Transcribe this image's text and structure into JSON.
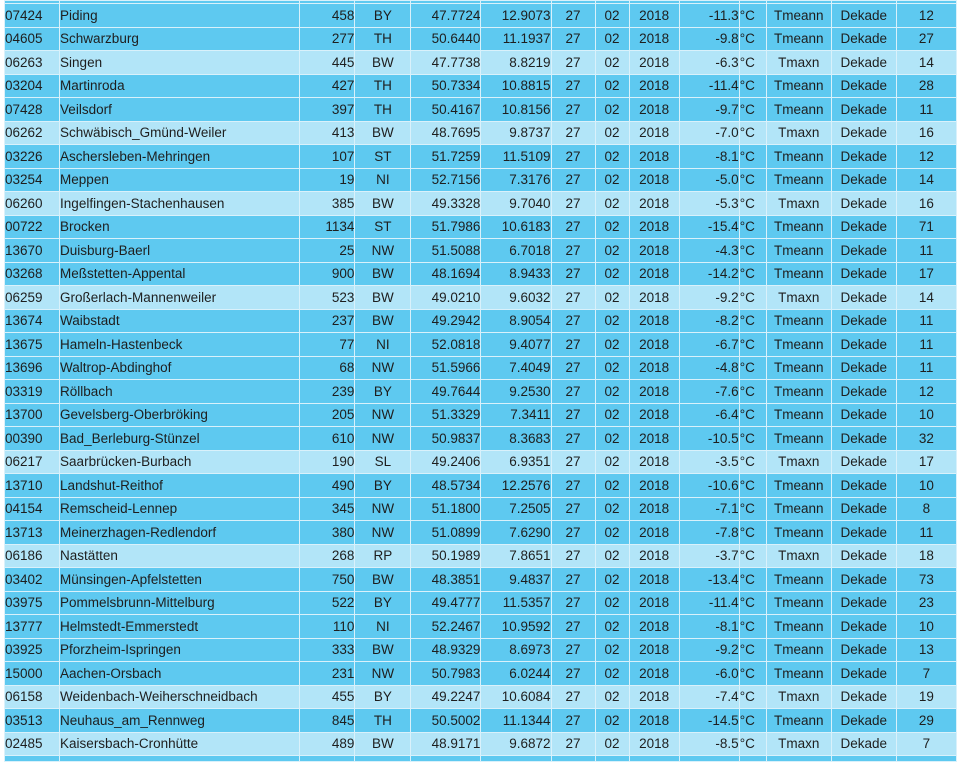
{
  "colors": {
    "row_dark": "#5ec9f0",
    "row_light": "#b2e5f8",
    "grid": "#d9f1fb",
    "text": "#1e1e1e",
    "page": "#ffffff"
  },
  "table": {
    "rows": [
      {
        "station_id": "07424",
        "name": "Piding",
        "elevation": "458",
        "state": "BY",
        "latitude": "47.7724",
        "longitude": "12.9073",
        "day": "27",
        "month": "02",
        "year": "2018",
        "temperature": "-11.3",
        "unit": "°C",
        "measure_type": "Tmeann",
        "period": "Dekade",
        "value": "12"
      },
      {
        "station_id": "04605",
        "name": "Schwarzburg",
        "elevation": "277",
        "state": "TH",
        "latitude": "50.6440",
        "longitude": "11.1937",
        "day": "27",
        "month": "02",
        "year": "2018",
        "temperature": "-9.8",
        "unit": "°C",
        "measure_type": "Tmeann",
        "period": "Dekade",
        "value": "27"
      },
      {
        "station_id": "06263",
        "name": "Singen",
        "elevation": "445",
        "state": "BW",
        "latitude": "47.7738",
        "longitude": "8.8219",
        "day": "27",
        "month": "02",
        "year": "2018",
        "temperature": "-6.3",
        "unit": "°C",
        "measure_type": "Tmaxn",
        "period": "Dekade",
        "value": "14"
      },
      {
        "station_id": "03204",
        "name": "Martinroda",
        "elevation": "427",
        "state": "TH",
        "latitude": "50.7334",
        "longitude": "10.8815",
        "day": "27",
        "month": "02",
        "year": "2018",
        "temperature": "-11.4",
        "unit": "°C",
        "measure_type": "Tmeann",
        "period": "Dekade",
        "value": "28"
      },
      {
        "station_id": "07428",
        "name": "Veilsdorf",
        "elevation": "397",
        "state": "TH",
        "latitude": "50.4167",
        "longitude": "10.8156",
        "day": "27",
        "month": "02",
        "year": "2018",
        "temperature": "-9.7",
        "unit": "°C",
        "measure_type": "Tmeann",
        "period": "Dekade",
        "value": "11"
      },
      {
        "station_id": "06262",
        "name": "Schwäbisch_Gmünd-Weiler",
        "elevation": "413",
        "state": "BW",
        "latitude": "48.7695",
        "longitude": "9.8737",
        "day": "27",
        "month": "02",
        "year": "2018",
        "temperature": "-7.0",
        "unit": "°C",
        "measure_type": "Tmaxn",
        "period": "Dekade",
        "value": "16"
      },
      {
        "station_id": "03226",
        "name": "Aschersleben-Mehringen",
        "elevation": "107",
        "state": "ST",
        "latitude": "51.7259",
        "longitude": "11.5109",
        "day": "27",
        "month": "02",
        "year": "2018",
        "temperature": "-8.1",
        "unit": "°C",
        "measure_type": "Tmeann",
        "period": "Dekade",
        "value": "12"
      },
      {
        "station_id": "03254",
        "name": "Meppen",
        "elevation": "19",
        "state": "NI",
        "latitude": "52.7156",
        "longitude": "7.3176",
        "day": "27",
        "month": "02",
        "year": "2018",
        "temperature": "-5.0",
        "unit": "°C",
        "measure_type": "Tmeann",
        "period": "Dekade",
        "value": "14"
      },
      {
        "station_id": "06260",
        "name": "Ingelfingen-Stachenhausen",
        "elevation": "385",
        "state": "BW",
        "latitude": "49.3328",
        "longitude": "9.7040",
        "day": "27",
        "month": "02",
        "year": "2018",
        "temperature": "-5.3",
        "unit": "°C",
        "measure_type": "Tmaxn",
        "period": "Dekade",
        "value": "16"
      },
      {
        "station_id": "00722",
        "name": "Brocken",
        "elevation": "1134",
        "state": "ST",
        "latitude": "51.7986",
        "longitude": "10.6183",
        "day": "27",
        "month": "02",
        "year": "2018",
        "temperature": "-15.4",
        "unit": "°C",
        "measure_type": "Tmeann",
        "period": "Dekade",
        "value": "71"
      },
      {
        "station_id": "13670",
        "name": "Duisburg-Baerl",
        "elevation": "25",
        "state": "NW",
        "latitude": "51.5088",
        "longitude": "6.7018",
        "day": "27",
        "month": "02",
        "year": "2018",
        "temperature": "-4.3",
        "unit": "°C",
        "measure_type": "Tmeann",
        "period": "Dekade",
        "value": "11"
      },
      {
        "station_id": "03268",
        "name": "Meßstetten-Appental",
        "elevation": "900",
        "state": "BW",
        "latitude": "48.1694",
        "longitude": "8.9433",
        "day": "27",
        "month": "02",
        "year": "2018",
        "temperature": "-14.2",
        "unit": "°C",
        "measure_type": "Tmeann",
        "period": "Dekade",
        "value": "17"
      },
      {
        "station_id": "06259",
        "name": "Großerlach-Mannenweiler",
        "elevation": "523",
        "state": "BW",
        "latitude": "49.0210",
        "longitude": "9.6032",
        "day": "27",
        "month": "02",
        "year": "2018",
        "temperature": "-9.2",
        "unit": "°C",
        "measure_type": "Tmaxn",
        "period": "Dekade",
        "value": "14"
      },
      {
        "station_id": "13674",
        "name": "Waibstadt",
        "elevation": "237",
        "state": "BW",
        "latitude": "49.2942",
        "longitude": "8.9054",
        "day": "27",
        "month": "02",
        "year": "2018",
        "temperature": "-8.2",
        "unit": "°C",
        "measure_type": "Tmeann",
        "period": "Dekade",
        "value": "11"
      },
      {
        "station_id": "13675",
        "name": "Hameln-Hastenbeck",
        "elevation": "77",
        "state": "NI",
        "latitude": "52.0818",
        "longitude": "9.4077",
        "day": "27",
        "month": "02",
        "year": "2018",
        "temperature": "-6.7",
        "unit": "°C",
        "measure_type": "Tmeann",
        "period": "Dekade",
        "value": "11"
      },
      {
        "station_id": "13696",
        "name": "Waltrop-Abdinghof",
        "elevation": "68",
        "state": "NW",
        "latitude": "51.5966",
        "longitude": "7.4049",
        "day": "27",
        "month": "02",
        "year": "2018",
        "temperature": "-4.8",
        "unit": "°C",
        "measure_type": "Tmeann",
        "period": "Dekade",
        "value": "11"
      },
      {
        "station_id": "03319",
        "name": "Röllbach",
        "elevation": "239",
        "state": "BY",
        "latitude": "49.7644",
        "longitude": "9.2530",
        "day": "27",
        "month": "02",
        "year": "2018",
        "temperature": "-7.6",
        "unit": "°C",
        "measure_type": "Tmeann",
        "period": "Dekade",
        "value": "12"
      },
      {
        "station_id": "13700",
        "name": "Gevelsberg-Oberbröking",
        "elevation": "205",
        "state": "NW",
        "latitude": "51.3329",
        "longitude": "7.3411",
        "day": "27",
        "month": "02",
        "year": "2018",
        "temperature": "-6.4",
        "unit": "°C",
        "measure_type": "Tmeann",
        "period": "Dekade",
        "value": "10"
      },
      {
        "station_id": "00390",
        "name": "Bad_Berleburg-Stünzel",
        "elevation": "610",
        "state": "NW",
        "latitude": "50.9837",
        "longitude": "8.3683",
        "day": "27",
        "month": "02",
        "year": "2018",
        "temperature": "-10.5",
        "unit": "°C",
        "measure_type": "Tmeann",
        "period": "Dekade",
        "value": "32"
      },
      {
        "station_id": "06217",
        "name": "Saarbrücken-Burbach",
        "elevation": "190",
        "state": "SL",
        "latitude": "49.2406",
        "longitude": "6.9351",
        "day": "27",
        "month": "02",
        "year": "2018",
        "temperature": "-3.5",
        "unit": "°C",
        "measure_type": "Tmaxn",
        "period": "Dekade",
        "value": "17"
      },
      {
        "station_id": "13710",
        "name": "Landshut-Reithof",
        "elevation": "490",
        "state": "BY",
        "latitude": "48.5734",
        "longitude": "12.2576",
        "day": "27",
        "month": "02",
        "year": "2018",
        "temperature": "-10.6",
        "unit": "°C",
        "measure_type": "Tmeann",
        "period": "Dekade",
        "value": "10"
      },
      {
        "station_id": "04154",
        "name": "Remscheid-Lennep",
        "elevation": "345",
        "state": "NW",
        "latitude": "51.1800",
        "longitude": "7.2505",
        "day": "27",
        "month": "02",
        "year": "2018",
        "temperature": "-7.1",
        "unit": "°C",
        "measure_type": "Tmeann",
        "period": "Dekade",
        "value": "8"
      },
      {
        "station_id": "13713",
        "name": "Meinerzhagen-Redlendorf",
        "elevation": "380",
        "state": "NW",
        "latitude": "51.0899",
        "longitude": "7.6290",
        "day": "27",
        "month": "02",
        "year": "2018",
        "temperature": "-7.8",
        "unit": "°C",
        "measure_type": "Tmeann",
        "period": "Dekade",
        "value": "11"
      },
      {
        "station_id": "06186",
        "name": "Nastätten",
        "elevation": "268",
        "state": "RP",
        "latitude": "50.1989",
        "longitude": "7.8651",
        "day": "27",
        "month": "02",
        "year": "2018",
        "temperature": "-3.7",
        "unit": "°C",
        "measure_type": "Tmaxn",
        "period": "Dekade",
        "value": "18"
      },
      {
        "station_id": "03402",
        "name": "Münsingen-Apfelstetten",
        "elevation": "750",
        "state": "BW",
        "latitude": "48.3851",
        "longitude": "9.4837",
        "day": "27",
        "month": "02",
        "year": "2018",
        "temperature": "-13.4",
        "unit": "°C",
        "measure_type": "Tmeann",
        "period": "Dekade",
        "value": "73"
      },
      {
        "station_id": "03975",
        "name": "Pommelsbrunn-Mittelburg",
        "elevation": "522",
        "state": "BY",
        "latitude": "49.4777",
        "longitude": "11.5357",
        "day": "27",
        "month": "02",
        "year": "2018",
        "temperature": "-11.4",
        "unit": "°C",
        "measure_type": "Tmeann",
        "period": "Dekade",
        "value": "23"
      },
      {
        "station_id": "13777",
        "name": "Helmstedt-Emmerstedt",
        "elevation": "110",
        "state": "NI",
        "latitude": "52.2467",
        "longitude": "10.9592",
        "day": "27",
        "month": "02",
        "year": "2018",
        "temperature": "-8.1",
        "unit": "°C",
        "measure_type": "Tmeann",
        "period": "Dekade",
        "value": "10"
      },
      {
        "station_id": "03925",
        "name": "Pforzheim-Ispringen",
        "elevation": "333",
        "state": "BW",
        "latitude": "48.9329",
        "longitude": "8.6973",
        "day": "27",
        "month": "02",
        "year": "2018",
        "temperature": "-9.2",
        "unit": "°C",
        "measure_type": "Tmeann",
        "period": "Dekade",
        "value": "13"
      },
      {
        "station_id": "15000",
        "name": "Aachen-Orsbach",
        "elevation": "231",
        "state": "NW",
        "latitude": "50.7983",
        "longitude": "6.0244",
        "day": "27",
        "month": "02",
        "year": "2018",
        "temperature": "-6.0",
        "unit": "°C",
        "measure_type": "Tmeann",
        "period": "Dekade",
        "value": "7"
      },
      {
        "station_id": "06158",
        "name": "Weidenbach-Weiherschneidbach",
        "elevation": "455",
        "state": "BY",
        "latitude": "49.2247",
        "longitude": "10.6084",
        "day": "27",
        "month": "02",
        "year": "2018",
        "temperature": "-7.4",
        "unit": "°C",
        "measure_type": "Tmaxn",
        "period": "Dekade",
        "value": "19"
      },
      {
        "station_id": "03513",
        "name": "Neuhaus_am_Rennweg",
        "elevation": "845",
        "state": "TH",
        "latitude": "50.5002",
        "longitude": "11.1344",
        "day": "27",
        "month": "02",
        "year": "2018",
        "temperature": "-14.5",
        "unit": "°C",
        "measure_type": "Tmeann",
        "period": "Dekade",
        "value": "29"
      },
      {
        "station_id": "02485",
        "name": "Kaisersbach-Cronhütte",
        "elevation": "489",
        "state": "BW",
        "latitude": "48.9171",
        "longitude": "9.6872",
        "day": "27",
        "month": "02",
        "year": "2018",
        "temperature": "-8.5",
        "unit": "°C",
        "measure_type": "Tmaxn",
        "period": "Dekade",
        "value": "7"
      }
    ]
  }
}
